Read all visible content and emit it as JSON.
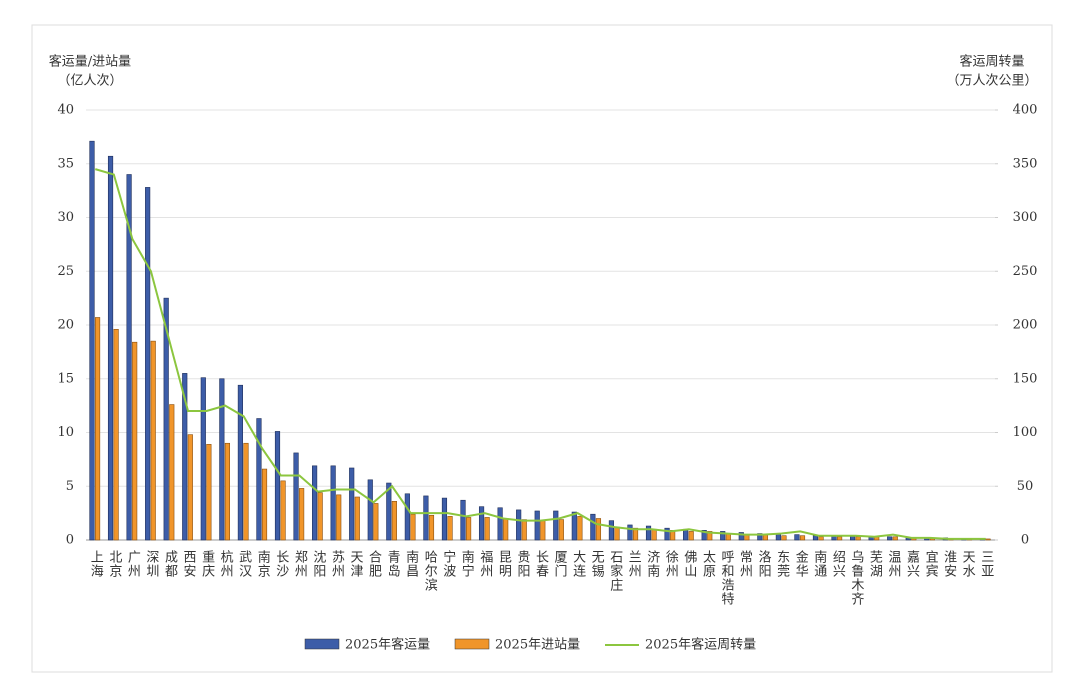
{
  "chart_data": {
    "type": "bar-line",
    "y_title": [
      "客运量/进站量",
      "（亿人次）"
    ],
    "y2_title": [
      "客运周转量",
      "（万人次公里）"
    ],
    "categories": [
      "上海",
      "北京",
      "广州",
      "深圳",
      "成都",
      "西安",
      "重庆",
      "杭州",
      "武汉",
      "南京",
      "长沙",
      "郑州",
      "沈阳",
      "苏州",
      "天津",
      "合肥",
      "青岛",
      "南昌",
      "哈尔滨",
      "宁波",
      "南宁",
      "福州",
      "昆明",
      "贵阳",
      "长春",
      "厦门",
      "大连",
      "无锡",
      "石家庄",
      "兰州",
      "济南",
      "徐州",
      "佛山",
      "太原",
      "呼和浩特",
      "常州",
      "洛阳",
      "东莞",
      "金华",
      "南通",
      "绍兴",
      "乌鲁木齐",
      "芜湖",
      "温州",
      "嘉兴",
      "宜宾",
      "淮安",
      "天水",
      "三亚"
    ],
    "series": [
      {
        "name": "2025年客运量",
        "color": "#3d5da8",
        "type": "bar",
        "values": [
          37.1,
          35.7,
          34.0,
          32.8,
          22.5,
          15.5,
          15.1,
          15.0,
          14.4,
          11.3,
          10.1,
          8.1,
          6.9,
          6.9,
          6.7,
          5.6,
          5.3,
          4.3,
          4.1,
          3.9,
          3.7,
          3.1,
          3.0,
          2.8,
          2.7,
          2.7,
          2.6,
          2.4,
          1.8,
          1.4,
          1.3,
          1.1,
          1.0,
          0.9,
          0.8,
          0.7,
          0.6,
          0.6,
          0.5,
          0.4,
          0.4,
          0.4,
          0.3,
          0.3,
          0.2,
          0.2,
          0.2,
          0.1,
          0.1
        ]
      },
      {
        "name": "2025年进站量",
        "color": "#f0952a",
        "type": "bar",
        "values": [
          20.7,
          19.6,
          18.4,
          18.5,
          12.6,
          9.8,
          8.9,
          9.0,
          9.0,
          6.6,
          5.5,
          4.8,
          4.4,
          4.2,
          4.0,
          3.4,
          3.6,
          2.4,
          2.3,
          2.2,
          2.1,
          2.1,
          2.0,
          1.9,
          1.8,
          1.9,
          2.2,
          2.0,
          1.2,
          1.1,
          1.0,
          0.9,
          0.8,
          0.8,
          0.6,
          0.5,
          0.5,
          0.4,
          0.4,
          0.3,
          0.3,
          0.3,
          0.3,
          0.3,
          0.2,
          0.2,
          0.1,
          0.1,
          0.1
        ]
      },
      {
        "name": "2025年客运周转量",
        "color": "#8cc63f",
        "type": "line",
        "axis": "y2",
        "values": [
          345,
          340,
          280,
          250,
          185,
          120,
          120,
          125,
          115,
          85,
          60,
          60,
          45,
          47,
          47,
          35,
          50,
          25,
          25,
          25,
          22,
          25,
          20,
          18,
          18,
          20,
          25,
          15,
          12,
          10,
          10,
          8,
          10,
          7,
          6,
          5,
          5,
          6,
          8,
          4,
          4,
          4,
          3,
          5,
          2,
          2,
          1,
          1,
          1
        ]
      }
    ],
    "ylim": [
      0,
      40
    ],
    "yticks": [
      0,
      5,
      10,
      15,
      20,
      25,
      30,
      35,
      40
    ],
    "y2lim": [
      0,
      400
    ],
    "y2ticks": [
      0,
      50,
      100,
      150,
      200,
      250,
      300,
      350,
      400
    ],
    "grid": true
  }
}
